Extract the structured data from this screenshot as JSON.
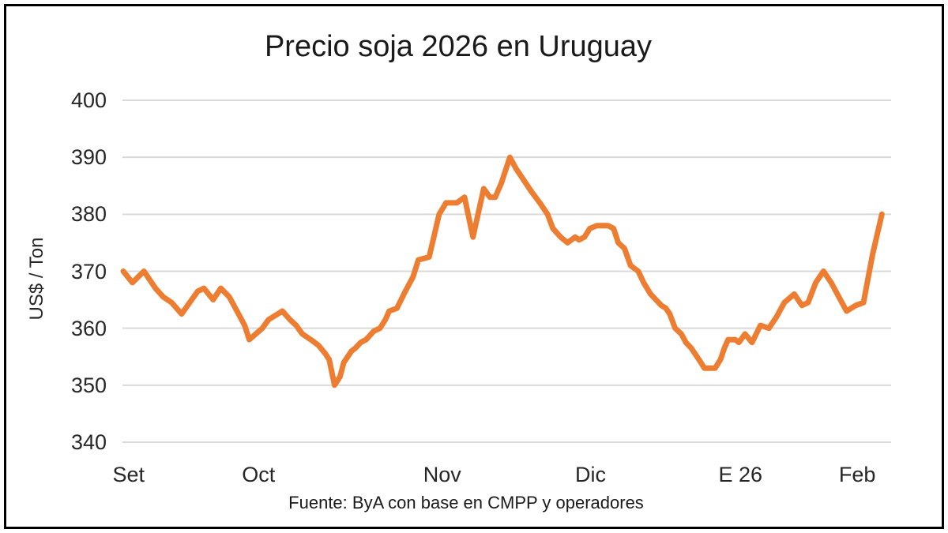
{
  "title": "Precio soja 2026 en Uruguay",
  "footer": "Fuente: ByA con base en CMPP y operadores",
  "colors": {
    "line": "#ED7D31",
    "gridline": "#D9D9D9",
    "tick_text": "#262626",
    "title_text": "#1A1A1A",
    "border": "#000000",
    "background": "#FFFFFF"
  },
  "chart_data": {
    "type": "line",
    "title": "Precio soja 2026 en Uruguay",
    "xlabel": "",
    "ylabel": "US$ / Ton",
    "ylim": [
      340,
      400
    ],
    "y_ticks": [
      400,
      390,
      380,
      370,
      360,
      350,
      340
    ],
    "grid": true,
    "legend": false,
    "x_tick_labels": [
      {
        "text": "Set",
        "pos": 0.008
      },
      {
        "text": "Oct",
        "pos": 0.177
      },
      {
        "text": "Nov",
        "pos": 0.416
      },
      {
        "text": "Dic",
        "pos": 0.609
      },
      {
        "text": "E 26",
        "pos": 0.804
      },
      {
        "text": "Feb",
        "pos": 0.956
      }
    ],
    "series": [
      {
        "name": "Precio soja 2026 en Uruguay (US$/Ton)",
        "points": [
          [
            0.001,
            370
          ],
          [
            0.013,
            368
          ],
          [
            0.028,
            370
          ],
          [
            0.043,
            367
          ],
          [
            0.053,
            365.5
          ],
          [
            0.064,
            364.5
          ],
          [
            0.077,
            362.5
          ],
          [
            0.09,
            365
          ],
          [
            0.098,
            366.5
          ],
          [
            0.106,
            367
          ],
          [
            0.118,
            365
          ],
          [
            0.128,
            367
          ],
          [
            0.139,
            365.5
          ],
          [
            0.149,
            363
          ],
          [
            0.159,
            360.5
          ],
          [
            0.165,
            358
          ],
          [
            0.182,
            360
          ],
          [
            0.19,
            361.5
          ],
          [
            0.208,
            363
          ],
          [
            0.218,
            361.5
          ],
          [
            0.226,
            360.5
          ],
          [
            0.234,
            359
          ],
          [
            0.245,
            358
          ],
          [
            0.255,
            357
          ],
          [
            0.264,
            355.5
          ],
          [
            0.269,
            354.5
          ],
          [
            0.276,
            350
          ],
          [
            0.283,
            351.5
          ],
          [
            0.288,
            354
          ],
          [
            0.298,
            356
          ],
          [
            0.303,
            356.5
          ],
          [
            0.31,
            357.5
          ],
          [
            0.317,
            358
          ],
          [
            0.327,
            359.5
          ],
          [
            0.335,
            360
          ],
          [
            0.342,
            361.5
          ],
          [
            0.347,
            363
          ],
          [
            0.357,
            363.5
          ],
          [
            0.368,
            366.5
          ],
          [
            0.378,
            369
          ],
          [
            0.385,
            372
          ],
          [
            0.399,
            372.5
          ],
          [
            0.412,
            380
          ],
          [
            0.421,
            382
          ],
          [
            0.435,
            382
          ],
          [
            0.445,
            383
          ],
          [
            0.456,
            376
          ],
          [
            0.47,
            384.5
          ],
          [
            0.478,
            383
          ],
          [
            0.485,
            383
          ],
          [
            0.493,
            385.5
          ],
          [
            0.504,
            390
          ],
          [
            0.512,
            388
          ],
          [
            0.522,
            386
          ],
          [
            0.532,
            384
          ],
          [
            0.543,
            382
          ],
          [
            0.553,
            380
          ],
          [
            0.56,
            377.5
          ],
          [
            0.57,
            376
          ],
          [
            0.579,
            375
          ],
          [
            0.589,
            376
          ],
          [
            0.594,
            375.5
          ],
          [
            0.601,
            376
          ],
          [
            0.608,
            377.5
          ],
          [
            0.617,
            378
          ],
          [
            0.632,
            378
          ],
          [
            0.639,
            377.5
          ],
          [
            0.645,
            375
          ],
          [
            0.653,
            374
          ],
          [
            0.661,
            371
          ],
          [
            0.671,
            370
          ],
          [
            0.678,
            368
          ],
          [
            0.687,
            366
          ],
          [
            0.694,
            365
          ],
          [
            0.701,
            364
          ],
          [
            0.707,
            363.5
          ],
          [
            0.712,
            362.5
          ],
          [
            0.719,
            360
          ],
          [
            0.727,
            359
          ],
          [
            0.733,
            357.5
          ],
          [
            0.74,
            356.5
          ],
          [
            0.75,
            354.5
          ],
          [
            0.757,
            353
          ],
          [
            0.771,
            353
          ],
          [
            0.778,
            354.5
          ],
          [
            0.783,
            356.5
          ],
          [
            0.788,
            358
          ],
          [
            0.797,
            358
          ],
          [
            0.802,
            357.5
          ],
          [
            0.81,
            359
          ],
          [
            0.819,
            357.5
          ],
          [
            0.83,
            360.5
          ],
          [
            0.841,
            360
          ],
          [
            0.851,
            362
          ],
          [
            0.861,
            364.5
          ],
          [
            0.874,
            366
          ],
          [
            0.884,
            364
          ],
          [
            0.892,
            364.5
          ],
          [
            0.902,
            368
          ],
          [
            0.912,
            370
          ],
          [
            0.922,
            368
          ],
          [
            0.93,
            366
          ],
          [
            0.942,
            363
          ],
          [
            0.954,
            364
          ],
          [
            0.964,
            364.5
          ],
          [
            0.976,
            373
          ],
          [
            0.988,
            380
          ]
        ]
      }
    ]
  }
}
